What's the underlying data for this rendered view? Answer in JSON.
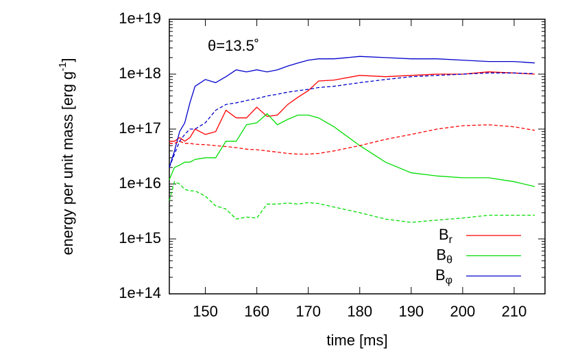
{
  "chart_data": {
    "type": "line",
    "xlabel": "time [ms]",
    "ylabel": "energy per unit mass [erg g-1]",
    "annotation": "θ=13.5˚",
    "log_y": true,
    "legend": "lower right",
    "x": [
      143,
      144,
      145,
      146,
      147,
      148,
      150,
      152,
      154,
      156,
      158,
      160,
      162,
      164,
      166,
      168,
      170,
      172,
      175,
      180,
      185,
      190,
      195,
      200,
      205,
      210,
      214
    ],
    "xlim": [
      143,
      216
    ],
    "xticks": [
      150,
      160,
      170,
      180,
      190,
      200,
      210
    ],
    "ylim": [
      100000000000000.0,
      1e+19
    ],
    "yticks": [
      {
        "value": 100000000000000.0,
        "label": "1e+14"
      },
      {
        "value": 1000000000000000.0,
        "label": "1e+15"
      },
      {
        "value": 1e+16,
        "label": "1e+16"
      },
      {
        "value": 1e+17,
        "label": "1e+17"
      },
      {
        "value": 1e+18,
        "label": "1e+18"
      },
      {
        "value": 1e+19,
        "label": "1e+19"
      }
    ],
    "series": [
      {
        "name": "Br",
        "color": "#ff0000",
        "values": [
          6e+16,
          6e+16,
          7e+16,
          6e+16,
          7e+16,
          1e+17,
          8e+16,
          9e+16,
          2.2e+17,
          1.6e+17,
          1.6e+17,
          2.5e+17,
          1.7e+17,
          1.8e+17,
          2.8e+17,
          3.8e+17,
          5e+17,
          7.5e+17,
          7.8e+17,
          9.5e+17,
          9e+17,
          9.5e+17,
          1e+18,
          1e+18,
          1.1e+18,
          1.05e+18,
          1e+18
        ]
      },
      {
        "name": "Bθ",
        "color": "#00dd00",
        "values": [
          1.2e+16,
          2e+16,
          2.2e+16,
          2.5e+16,
          2.5e+16,
          2.8e+16,
          3e+16,
          3e+16,
          6e+16,
          6e+16,
          1.2e+17,
          1.3e+17,
          1.9e+17,
          1.2e+17,
          1.5e+17,
          1.8e+17,
          1.8e+17,
          1.6e+17,
          1.1e+17,
          5e+16,
          2.5e+16,
          1.6e+16,
          1.4e+16,
          1.3e+16,
          1.3e+16,
          1.1e+16,
          9000000000000000.0
        ]
      },
      {
        "name": "Bφ",
        "color": "#0000cc",
        "values": [
          2e+16,
          4e+16,
          9e+16,
          1.3e+17,
          3e+17,
          6e+17,
          8e+17,
          7e+17,
          9e+17,
          1.2e+18,
          1.1e+18,
          1.2e+18,
          1.1e+18,
          1.2e+18,
          1.4e+18,
          1.6e+18,
          1.8e+18,
          1.9e+18,
          1.9e+18,
          2.1e+18,
          2e+18,
          1.9e+18,
          1.9e+18,
          1.8e+18,
          1.7e+18,
          1.7e+18,
          1.6e+18
        ]
      },
      {
        "color": "#ff0000",
        "dashed": true,
        "values": [
          5.5e+16,
          5.5e+16,
          6e+16,
          5.5e+16,
          5.5e+16,
          5.3e+16,
          5.2e+16,
          5e+16,
          4.8e+16,
          4.6e+16,
          4.3e+16,
          4.2e+16,
          4e+16,
          3.8e+16,
          3.6e+16,
          3.5e+16,
          3.5e+16,
          3.6e+16,
          4e+16,
          5e+16,
          6.5e+16,
          8e+16,
          1e+17,
          1.15e+17,
          1.2e+17,
          1.1e+17,
          9.5e+16
        ]
      },
      {
        "color": "#00dd00",
        "dashed": true,
        "values": [
          5000000000000000.0,
          1.1e+16,
          1e+16,
          8000000000000000.0,
          7500000000000000.0,
          7500000000000000.0,
          6000000000000000.0,
          4000000000000000.0,
          3500000000000000.0,
          2300000000000000.0,
          2500000000000000.0,
          2400000000000000.0,
          4300000000000000.0,
          4300000000000000.0,
          4500000000000000.0,
          4300000000000000.0,
          4600000000000000.0,
          4400000000000000.0,
          3800000000000000.0,
          3000000000000000.0,
          2300000000000000.0,
          2000000000000000.0,
          2200000000000000.0,
          2400000000000000.0,
          2700000000000000.0,
          2700000000000000.0,
          2700000000000000.0
        ]
      },
      {
        "color": "#0000cc",
        "dashed": true,
        "values": [
          2e+16,
          3.5e+16,
          6e+16,
          8e+16,
          1e+17,
          1e+17,
          1.3e+17,
          2.2e+17,
          2.8e+17,
          3e+17,
          3.3e+17,
          3.6e+17,
          4e+17,
          4.3e+17,
          4.7e+17,
          5e+17,
          5.3e+17,
          5.7e+17,
          6e+17,
          7e+17,
          8e+17,
          9e+17,
          9.5e+17,
          1e+18,
          1.05e+18,
          1.05e+18,
          1.02e+18
        ]
      }
    ]
  }
}
